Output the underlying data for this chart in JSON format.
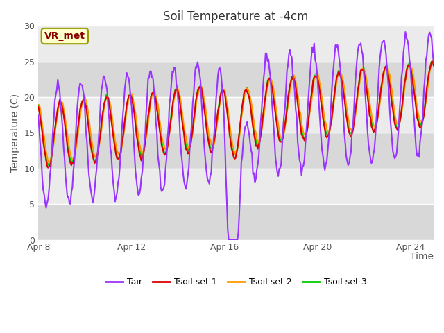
{
  "title": "Soil Temperature at -4cm",
  "xlabel": "Time",
  "ylabel": "Temperature (C)",
  "ylim": [
    0,
    30
  ],
  "xlim": [
    0,
    17
  ],
  "x_ticks": [
    0,
    4,
    8,
    12,
    16
  ],
  "x_tick_labels": [
    "Apr 8",
    "Apr 12",
    "Apr 16",
    "Apr 20",
    "Apr 24"
  ],
  "y_ticks": [
    0,
    5,
    10,
    15,
    20,
    25,
    30
  ],
  "colors": {
    "Tair": "#9933ff",
    "Tsoil1": "#dd0000",
    "Tsoil2": "#ff9900",
    "Tsoil3": "#00cc00"
  },
  "legend_labels": [
    "Tair",
    "Tsoil set 1",
    "Tsoil set 2",
    "Tsoil set 3"
  ],
  "fig_bg": "#ffffff",
  "plot_bg": "#d8d8d8",
  "white_band_color": "#ebebeb",
  "annotation_text": "VR_met",
  "annotation_bg": "#ffffcc",
  "annotation_fg": "#880000",
  "annotation_border": "#999900",
  "grid_color": "#c8c8c8",
  "line_width": 1.5
}
